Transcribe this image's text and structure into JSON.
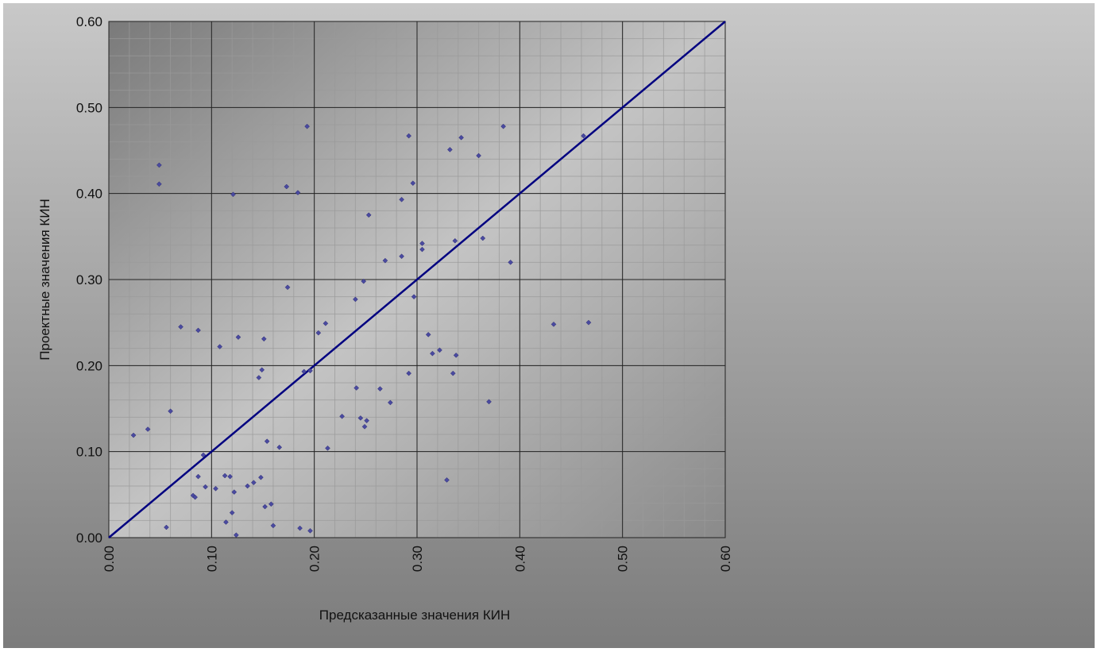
{
  "chart_data": {
    "type": "scatter",
    "x_label": "Предсказанные значения КИН",
    "y_label": "Проектные значения КИН",
    "xlim": [
      0,
      0.6
    ],
    "ylim": [
      0,
      0.6
    ],
    "xticks": [
      {
        "value": 0,
        "label": "0.00"
      },
      {
        "value": 0.1,
        "label": "0.10"
      },
      {
        "value": 0.2,
        "label": "0.20"
      },
      {
        "value": 0.3,
        "label": "0.30"
      },
      {
        "value": 0.4,
        "label": "0.40"
      },
      {
        "value": 0.5,
        "label": "0.50"
      },
      {
        "value": 0.6,
        "label": "0.60"
      }
    ],
    "yticks": [
      {
        "value": 0,
        "label": "0.00"
      },
      {
        "value": 0.1,
        "label": "0.10"
      },
      {
        "value": 0.2,
        "label": "0.20"
      },
      {
        "value": 0.3,
        "label": "0.30"
      },
      {
        "value": 0.4,
        "label": "0.40"
      },
      {
        "value": 0.5,
        "label": "0.50"
      },
      {
        "value": 0.6,
        "label": "0.60"
      }
    ],
    "grid": true,
    "minor_grid_step": 0.02,
    "color": "#4a4aa0",
    "reference_line": {
      "x": [
        0,
        0.6
      ],
      "y": [
        0,
        0.6
      ],
      "color": "#000080"
    },
    "x": [
      0.024,
      0.038,
      0.049,
      0.049,
      0.056,
      0.06,
      0.07,
      0.082,
      0.084,
      0.087,
      0.087,
      0.092,
      0.094,
      0.104,
      0.108,
      0.113,
      0.114,
      0.118,
      0.12,
      0.121,
      0.122,
      0.124,
      0.126,
      0.135,
      0.141,
      0.146,
      0.148,
      0.149,
      0.151,
      0.152,
      0.154,
      0.158,
      0.16,
      0.166,
      0.173,
      0.174,
      0.184,
      0.186,
      0.19,
      0.193,
      0.196,
      0.196,
      0.204,
      0.211,
      0.213,
      0.227,
      0.24,
      0.241,
      0.245,
      0.248,
      0.249,
      0.251,
      0.253,
      0.264,
      0.269,
      0.274,
      0.285,
      0.285,
      0.292,
      0.292,
      0.296,
      0.297,
      0.305,
      0.305,
      0.311,
      0.315,
      0.322,
      0.329,
      0.332,
      0.335,
      0.337,
      0.338,
      0.343,
      0.36,
      0.364,
      0.37,
      0.384,
      0.391,
      0.433,
      0.462,
      0.467
    ],
    "values": [
      0.119,
      0.126,
      0.433,
      0.411,
      0.012,
      0.147,
      0.245,
      0.049,
      0.047,
      0.241,
      0.071,
      0.096,
      0.059,
      0.057,
      0.222,
      0.072,
      0.018,
      0.071,
      0.029,
      0.399,
      0.053,
      0.003,
      0.233,
      0.06,
      0.064,
      0.186,
      0.07,
      0.195,
      0.231,
      0.036,
      0.112,
      0.039,
      0.014,
      0.105,
      0.408,
      0.291,
      0.401,
      0.011,
      0.193,
      0.478,
      0.194,
      0.008,
      0.238,
      0.249,
      0.104,
      0.141,
      0.277,
      0.174,
      0.139,
      0.298,
      0.129,
      0.136,
      0.375,
      0.173,
      0.322,
      0.157,
      0.393,
      0.327,
      0.467,
      0.191,
      0.412,
      0.28,
      0.335,
      0.342,
      0.236,
      0.214,
      0.218,
      0.067,
      0.451,
      0.191,
      0.345,
      0.212,
      0.465,
      0.444,
      0.348,
      0.158,
      0.478,
      0.32,
      0.248,
      0.467,
      0.25
    ]
  }
}
